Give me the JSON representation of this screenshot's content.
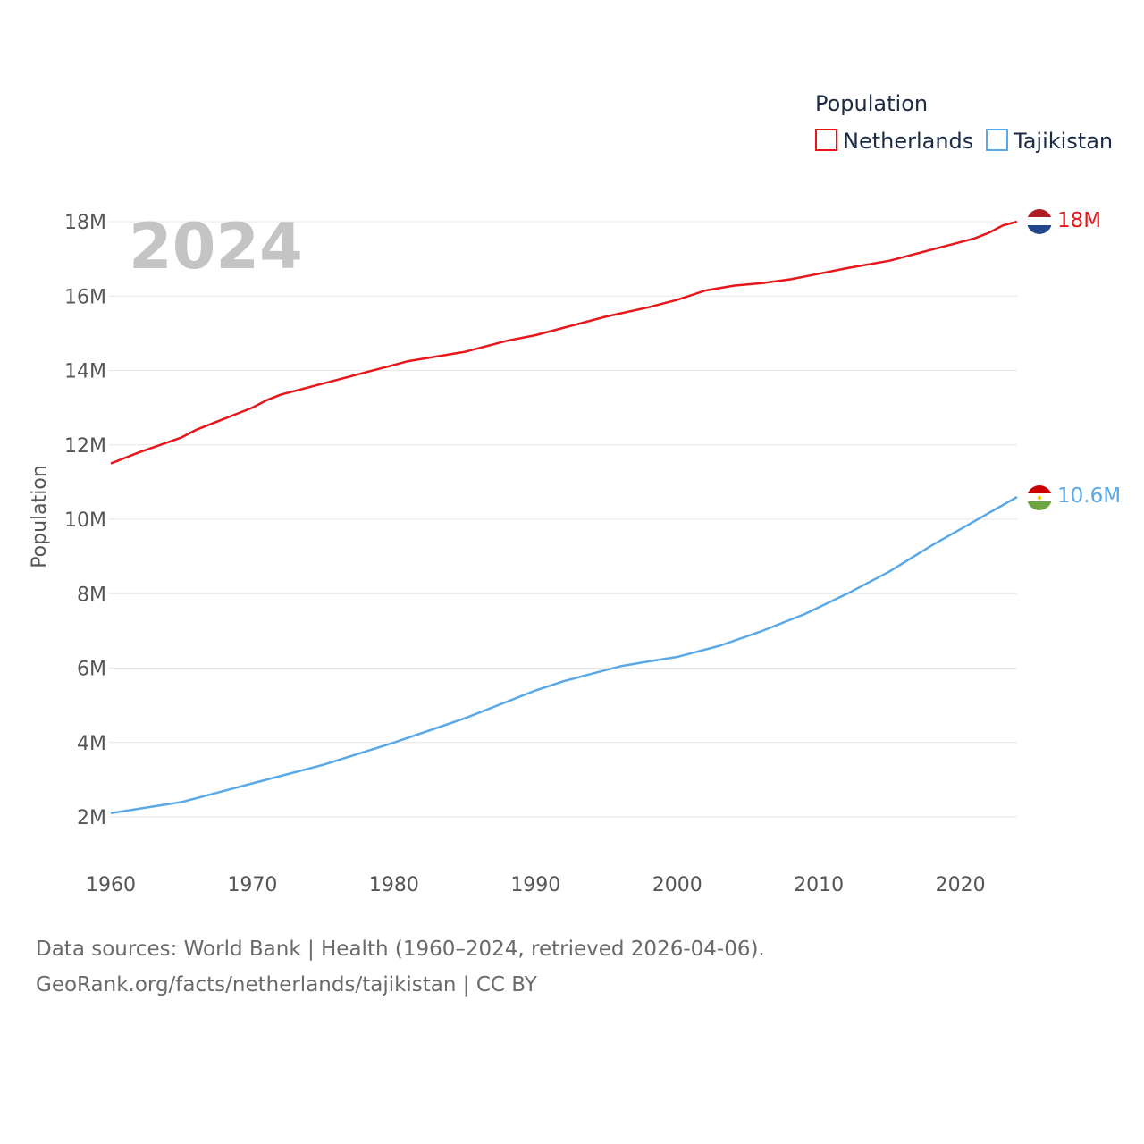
{
  "chart_data": {
    "type": "line",
    "year_label": "2024",
    "legend_title": "Population",
    "ylabel": "Population",
    "xlim": [
      1960,
      2024
    ],
    "ylim": [
      1000000,
      19000000
    ],
    "y_ticks": [
      {
        "value": 2000000,
        "label": "2M"
      },
      {
        "value": 4000000,
        "label": "4M"
      },
      {
        "value": 6000000,
        "label": "6M"
      },
      {
        "value": 8000000,
        "label": "8M"
      },
      {
        "value": 10000000,
        "label": "10M"
      },
      {
        "value": 12000000,
        "label": "12M"
      },
      {
        "value": 14000000,
        "label": "14M"
      },
      {
        "value": 16000000,
        "label": "16M"
      },
      {
        "value": 18000000,
        "label": "18M"
      }
    ],
    "x_ticks": [
      {
        "value": 1960,
        "label": "1960"
      },
      {
        "value": 1970,
        "label": "1970"
      },
      {
        "value": 1980,
        "label": "1980"
      },
      {
        "value": 1990,
        "label": "1990"
      },
      {
        "value": 2000,
        "label": "2000"
      },
      {
        "value": 2010,
        "label": "2010"
      },
      {
        "value": 2020,
        "label": "2020"
      }
    ],
    "series": [
      {
        "name": "Netherlands",
        "color": "#e8161b",
        "end_label": "18M",
        "flag": "netherlands-flag",
        "points": [
          [
            1960,
            11500000
          ],
          [
            1962,
            11800000
          ],
          [
            1965,
            12200000
          ],
          [
            1966,
            12400000
          ],
          [
            1968,
            12700000
          ],
          [
            1970,
            13000000
          ],
          [
            1971,
            13200000
          ],
          [
            1972,
            13350000
          ],
          [
            1975,
            13650000
          ],
          [
            1978,
            13950000
          ],
          [
            1980,
            14150000
          ],
          [
            1981,
            14250000
          ],
          [
            1985,
            14500000
          ],
          [
            1988,
            14800000
          ],
          [
            1990,
            14950000
          ],
          [
            1993,
            15250000
          ],
          [
            1995,
            15450000
          ],
          [
            1998,
            15700000
          ],
          [
            2000,
            15900000
          ],
          [
            2002,
            16150000
          ],
          [
            2004,
            16280000
          ],
          [
            2006,
            16350000
          ],
          [
            2008,
            16450000
          ],
          [
            2010,
            16600000
          ],
          [
            2012,
            16750000
          ],
          [
            2015,
            16950000
          ],
          [
            2018,
            17250000
          ],
          [
            2020,
            17450000
          ],
          [
            2021,
            17550000
          ],
          [
            2022,
            17700000
          ],
          [
            2023,
            17900000
          ],
          [
            2024,
            18000000
          ]
        ]
      },
      {
        "name": "Tajikistan",
        "color": "#5aa8e6",
        "end_label": "10.6M",
        "flag": "tajikistan-flag",
        "points": [
          [
            1960,
            2100000
          ],
          [
            1965,
            2400000
          ],
          [
            1970,
            2900000
          ],
          [
            1975,
            3400000
          ],
          [
            1980,
            4000000
          ],
          [
            1985,
            4650000
          ],
          [
            1988,
            5100000
          ],
          [
            1990,
            5400000
          ],
          [
            1992,
            5650000
          ],
          [
            1994,
            5850000
          ],
          [
            1996,
            6050000
          ],
          [
            1998,
            6180000
          ],
          [
            2000,
            6300000
          ],
          [
            2003,
            6600000
          ],
          [
            2006,
            7000000
          ],
          [
            2009,
            7450000
          ],
          [
            2012,
            8000000
          ],
          [
            2015,
            8600000
          ],
          [
            2018,
            9300000
          ],
          [
            2021,
            9950000
          ],
          [
            2024,
            10600000
          ]
        ]
      }
    ]
  },
  "footer": {
    "line1": "Data sources: World Bank | Health (1960–2024, retrieved 2026-04-06).",
    "line2": "GeoRank.org/facts/netherlands/tajikistan | CC BY"
  }
}
